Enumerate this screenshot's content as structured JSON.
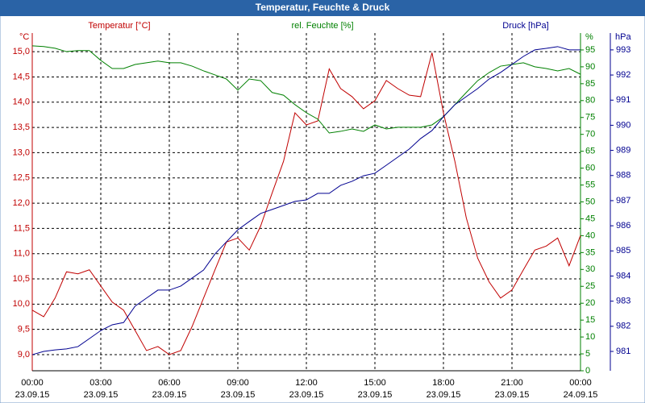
{
  "chart_data": {
    "type": "line",
    "title": "Temperatur, Feuchte & Druck",
    "x": [
      0,
      0.5,
      1,
      1.5,
      2,
      2.5,
      3,
      3.5,
      4,
      4.5,
      5,
      5.5,
      6,
      6.5,
      7,
      7.5,
      8,
      8.5,
      9,
      9.5,
      10,
      10.5,
      11,
      11.5,
      12,
      12.5,
      13,
      13.5,
      14,
      14.5,
      15,
      15.5,
      16,
      16.5,
      17,
      17.5,
      18,
      18.5,
      19,
      19.5,
      20,
      20.5,
      21,
      21.5,
      22,
      22.5,
      23,
      23.5,
      24
    ],
    "xlim": [
      0,
      24
    ],
    "xticks": [
      {
        "value": 0,
        "label": "00:00",
        "date": "23.09.15"
      },
      {
        "value": 3,
        "label": "03:00",
        "date": "23.09.15"
      },
      {
        "value": 6,
        "label": "06:00",
        "date": "23.09.15"
      },
      {
        "value": 9,
        "label": "09:00",
        "date": "23.09.15"
      },
      {
        "value": 12,
        "label": "12:00",
        "date": "23.09.15"
      },
      {
        "value": 15,
        "label": "15:00",
        "date": "23.09.15"
      },
      {
        "value": 18,
        "label": "18:00",
        "date": "23.09.15"
      },
      {
        "value": 21,
        "label": "21:00",
        "date": "23.09.15"
      },
      {
        "value": 24,
        "label": "00:00",
        "date": "24.09.15"
      }
    ],
    "y_label": "Temperatur [°C]",
    "y_unit": "°C",
    "y2_label": "rel. Feuchte [%]",
    "y2_unit": "%",
    "y3_label": "Druck [hPa]",
    "y3_unit": "hPa",
    "ylim": [
      8.68,
      15.37
    ],
    "yticks": [
      {
        "value": 9,
        "label": "9,0"
      },
      {
        "value": 9.5,
        "label": "9,5"
      },
      {
        "value": 10,
        "label": "10,0"
      },
      {
        "value": 10.5,
        "label": "10,5"
      },
      {
        "value": 11,
        "label": "11,0"
      },
      {
        "value": 11.5,
        "label": "11,5"
      },
      {
        "value": 12,
        "label": "12,0"
      },
      {
        "value": 12.5,
        "label": "12,5"
      },
      {
        "value": 13,
        "label": "13,0"
      },
      {
        "value": 13.5,
        "label": "13,5"
      },
      {
        "value": 14,
        "label": "14,0"
      },
      {
        "value": 14.5,
        "label": "14,5"
      },
      {
        "value": 15,
        "label": "15,0"
      }
    ],
    "y2lim": [
      0,
      100
    ],
    "y2ticks": [
      0,
      5,
      10,
      15,
      20,
      25,
      30,
      35,
      40,
      45,
      50,
      55,
      60,
      65,
      70,
      75,
      80,
      85,
      90,
      95
    ],
    "y3lim": [
      980.23,
      993.67
    ],
    "y3ticks": [
      981,
      982,
      983,
      984,
      985,
      986,
      987,
      988,
      989,
      990,
      991,
      992,
      993
    ],
    "grid": true,
    "series": [
      {
        "name": "Temperatur",
        "color": "#c00000",
        "axis": "y",
        "values": [
          9.88,
          9.75,
          10.12,
          10.64,
          10.6,
          10.68,
          10.36,
          10.04,
          9.88,
          9.48,
          9.08,
          9.16,
          9.0,
          9.08,
          9.56,
          10.12,
          10.68,
          11.23,
          11.31,
          11.07,
          11.55,
          12.2,
          12.83,
          13.79,
          13.55,
          13.63,
          14.66,
          14.27,
          14.11,
          13.87,
          14.03,
          14.43,
          14.27,
          14.14,
          14.11,
          14.98,
          13.79,
          12.83,
          11.71,
          10.91,
          10.44,
          10.12,
          10.28,
          10.68,
          11.07,
          11.15,
          11.31,
          10.76,
          11.36
        ]
      },
      {
        "name": "rel. Feuchte",
        "color": "#008000",
        "axis": "y2",
        "values": [
          96.2,
          96,
          95.5,
          94.5,
          94.8,
          94.8,
          91.9,
          89.5,
          89.5,
          90.7,
          91.2,
          91.7,
          91.2,
          91.2,
          90.2,
          88.8,
          87.6,
          86.4,
          83.1,
          86.4,
          85.9,
          82.4,
          81.6,
          78.8,
          76.4,
          74.5,
          70.4,
          70.9,
          71.6,
          70.9,
          72.8,
          71.6,
          72.1,
          72.1,
          72.1,
          72.8,
          75.2,
          78.8,
          82.4,
          85.9,
          88.3,
          90.2,
          90.7,
          91.2,
          90.0,
          89.5,
          88.8,
          89.5,
          87.8
        ]
      },
      {
        "name": "Druck",
        "color": "#000090",
        "axis": "y3",
        "values": [
          980.87,
          981.0,
          981.06,
          981.1,
          981.19,
          981.51,
          981.83,
          982.06,
          982.15,
          982.8,
          983.12,
          983.44,
          983.44,
          983.6,
          983.92,
          984.24,
          984.88,
          985.36,
          985.84,
          986.17,
          986.49,
          986.65,
          986.81,
          986.97,
          987.03,
          987.29,
          987.29,
          987.61,
          987.77,
          987.99,
          988.09,
          988.41,
          988.73,
          989.05,
          989.47,
          989.79,
          990.34,
          990.82,
          991.14,
          991.46,
          991.84,
          992.1,
          992.42,
          992.74,
          993.0,
          993.06,
          993.13,
          993.0,
          993.0
        ]
      }
    ]
  }
}
